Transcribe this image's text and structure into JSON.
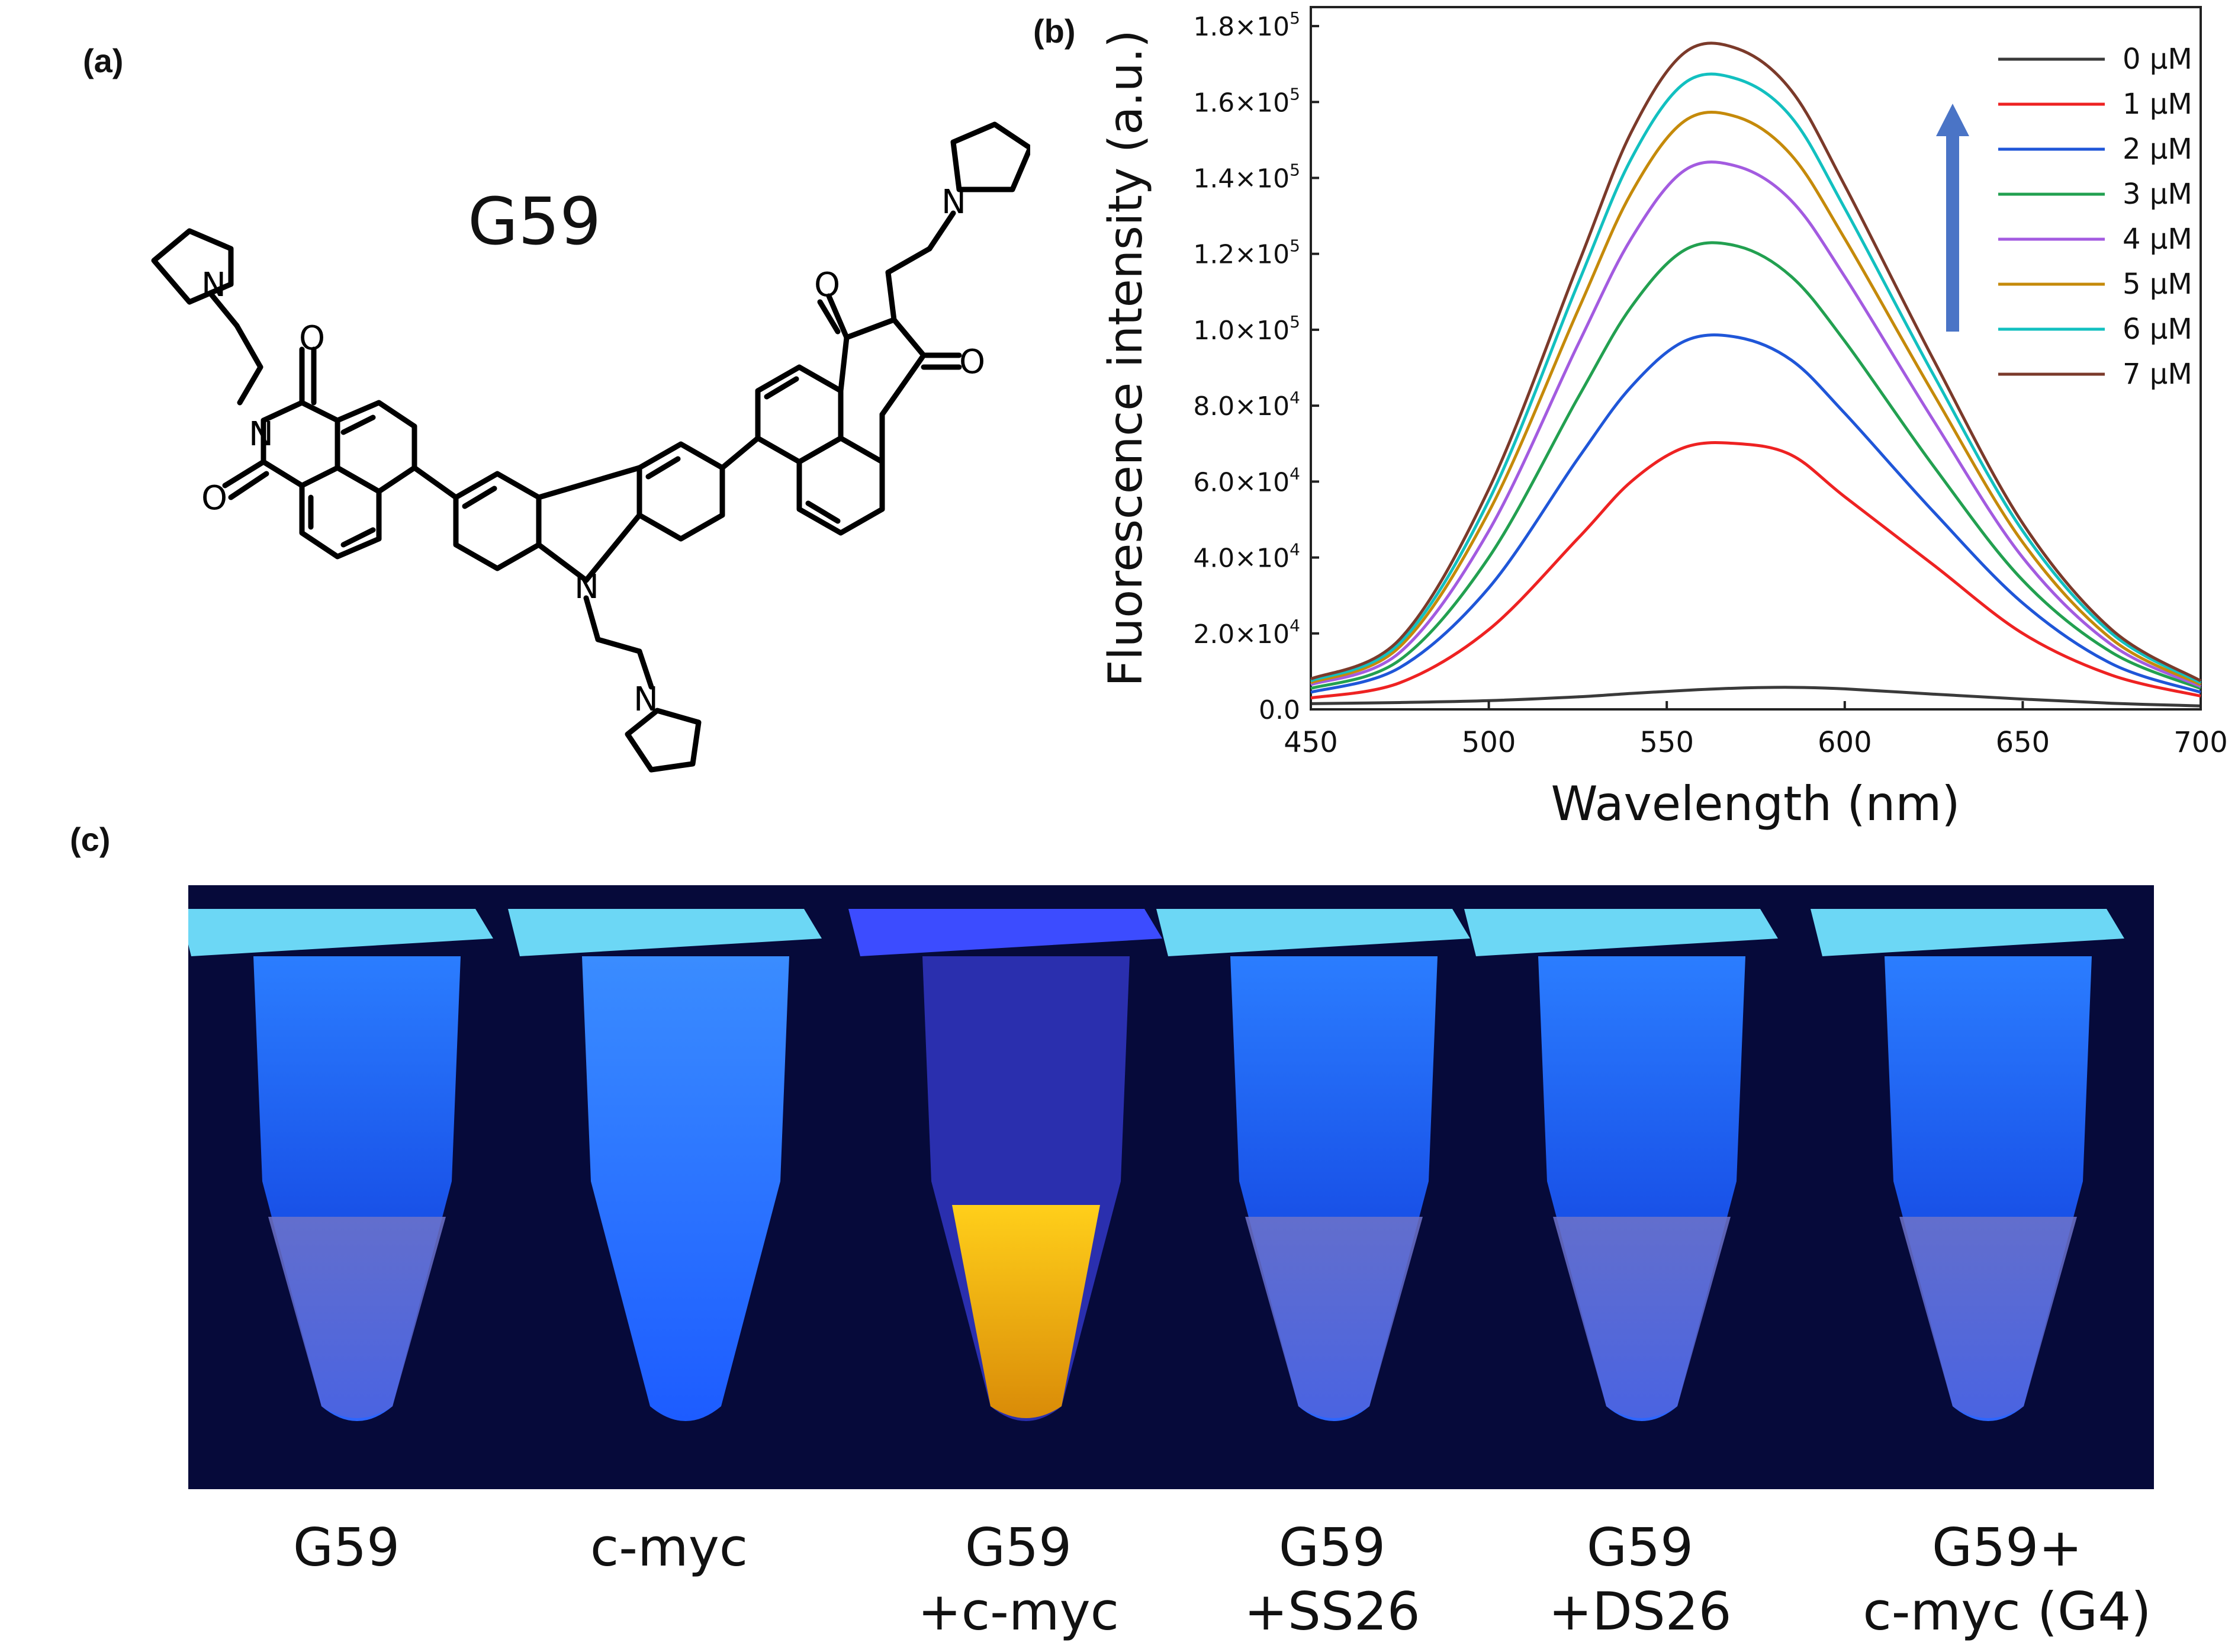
{
  "panels": {
    "a": "(a)",
    "b": "(b)",
    "c": "(c)"
  },
  "molecule": {
    "name": "G59",
    "atoms": {
      "N": "N",
      "O": "O"
    }
  },
  "chart_data": {
    "type": "line",
    "xlabel": "Wavelength (nm)",
    "ylabel": "Fluorescence intensity (a.u.)",
    "xlim": [
      450,
      700
    ],
    "ylim": [
      0,
      185000
    ],
    "x_ticks": [
      450,
      500,
      550,
      600,
      650,
      700
    ],
    "y_ticks": [
      {
        "value": 0,
        "label": "0.0"
      },
      {
        "value": 20000,
        "mant": "2.0×10",
        "exp": "4"
      },
      {
        "value": 40000,
        "mant": "4.0×10",
        "exp": "4"
      },
      {
        "value": 60000,
        "mant": "6.0×10",
        "exp": "4"
      },
      {
        "value": 80000,
        "mant": "8.0×10",
        "exp": "4"
      },
      {
        "value": 100000,
        "mant": "1.0×10",
        "exp": "5"
      },
      {
        "value": 120000,
        "mant": "1.2×10",
        "exp": "5"
      },
      {
        "value": 140000,
        "mant": "1.4×10",
        "exp": "5"
      },
      {
        "value": 160000,
        "mant": "1.6×10",
        "exp": "5"
      },
      {
        "value": 180000,
        "mant": "1.8×10",
        "exp": "5"
      }
    ],
    "legend_position": "top-right",
    "x": [
      450,
      475,
      500,
      525,
      540,
      555,
      570,
      585,
      600,
      625,
      650,
      675,
      700
    ],
    "series": [
      {
        "name": "0 μM",
        "color": "#3a3a3a",
        "values": [
          1500,
          1800,
          2300,
          3300,
          4200,
          5000,
          5600,
          5800,
          5400,
          4000,
          2700,
          1600,
          900
        ]
      },
      {
        "name": "1 μM",
        "color": "#ee2222",
        "values": [
          3000,
          7000,
          21000,
          45000,
          60000,
          69000,
          70000,
          67000,
          56000,
          38000,
          20000,
          9000,
          3500
        ]
      },
      {
        "name": "2 μM",
        "color": "#1f56d8",
        "values": [
          4500,
          11000,
          32000,
          66000,
          85000,
          97000,
          98000,
          92000,
          78000,
          52000,
          28000,
          12000,
          4500
        ]
      },
      {
        "name": "3 μM",
        "color": "#22a050",
        "values": [
          5500,
          13000,
          40000,
          82000,
          106000,
          121000,
          122000,
          114000,
          97000,
          64000,
          34000,
          15000,
          5500
        ]
      },
      {
        "name": "4 μM",
        "color": "#a35be0",
        "values": [
          6500,
          15000,
          47000,
          96000,
          124000,
          142000,
          143000,
          134000,
          114000,
          76000,
          40000,
          17000,
          6000
        ]
      },
      {
        "name": "5 μM",
        "color": "#c58a0a",
        "values": [
          7000,
          16500,
          52000,
          105000,
          136000,
          155000,
          156000,
          146000,
          124000,
          83000,
          44000,
          18500,
          6500
        ]
      },
      {
        "name": "6 μM",
        "color": "#12c0c0",
        "values": [
          7500,
          17500,
          55000,
          112000,
          145000,
          165000,
          166000,
          156000,
          132000,
          88000,
          47000,
          20000,
          7000
        ]
      },
      {
        "name": "7 μM",
        "color": "#7b3a2a",
        "values": [
          8000,
          18500,
          58000,
          117000,
          152000,
          173000,
          174000,
          163000,
          138000,
          92000,
          49000,
          21000,
          7500
        ]
      }
    ],
    "arrow_color": "#4a74c6"
  },
  "tubes": [
    {
      "lines": [
        "G59"
      ],
      "liquid": "blue"
    },
    {
      "lines": [
        "c-myc"
      ],
      "liquid": "blue-full"
    },
    {
      "lines": [
        "G59",
        "+c-myc"
      ],
      "liquid": "yellow"
    },
    {
      "lines": [
        "G59",
        "+SS26"
      ],
      "liquid": "blue"
    },
    {
      "lines": [
        "G59",
        "+DS26"
      ],
      "liquid": "blue"
    },
    {
      "lines": [
        "G59+",
        "c-myc (G4)"
      ],
      "liquid": "blue"
    }
  ],
  "colors": {
    "photo_bg": "#060a3a",
    "tube_glow": "#1e7bff",
    "cap": "#6cd7f5",
    "yellow": "#f0a90c"
  }
}
